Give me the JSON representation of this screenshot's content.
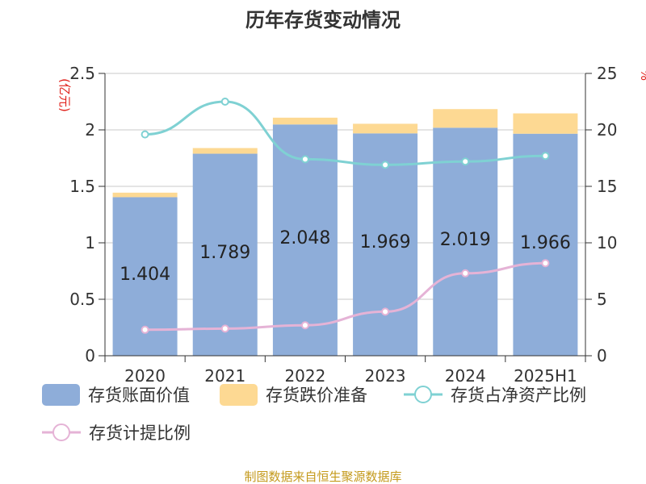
{
  "chart_data": {
    "type": "bar",
    "title": "历年存货变动情况",
    "ylabel": "(亿元)",
    "y2label": "%",
    "ylim": [
      0,
      2.5
    ],
    "y2lim": [
      0,
      25
    ],
    "yticks": [
      "0",
      "0.5",
      "1",
      "1.5",
      "2",
      "2.5"
    ],
    "y2ticks": [
      "0",
      "5",
      "10",
      "15",
      "20",
      "25"
    ],
    "categories": [
      "2020",
      "2021",
      "2022",
      "2023",
      "2024",
      "2025H1"
    ],
    "bar_labels": [
      "1.404",
      "1.789",
      "2.048",
      "1.969",
      "2.019",
      "1.966"
    ],
    "grid": true,
    "legend_position": "bottom",
    "series": [
      {
        "name": "存货账面价值",
        "kind": "bar",
        "axis": "left",
        "color": "#8eadd9",
        "values": [
          1.404,
          1.789,
          2.048,
          1.969,
          2.019,
          1.966
        ]
      },
      {
        "name": "存货跌价准备",
        "kind": "bar-stack",
        "axis": "left",
        "color": "#fdd993",
        "values": [
          0.04,
          0.05,
          0.06,
          0.085,
          0.165,
          0.18
        ]
      },
      {
        "name": "存货占净资产比例",
        "kind": "line",
        "axis": "right",
        "color": "#7fd1d3",
        "values": [
          19.6,
          22.5,
          17.4,
          16.9,
          17.2,
          17.7
        ]
      },
      {
        "name": "存货计提比例",
        "kind": "line",
        "axis": "right",
        "color": "#e5b3d6",
        "values": [
          2.3,
          2.4,
          2.7,
          3.9,
          7.3,
          8.2
        ]
      }
    ]
  },
  "source_note": "制图数据来自恒生聚源数据库"
}
